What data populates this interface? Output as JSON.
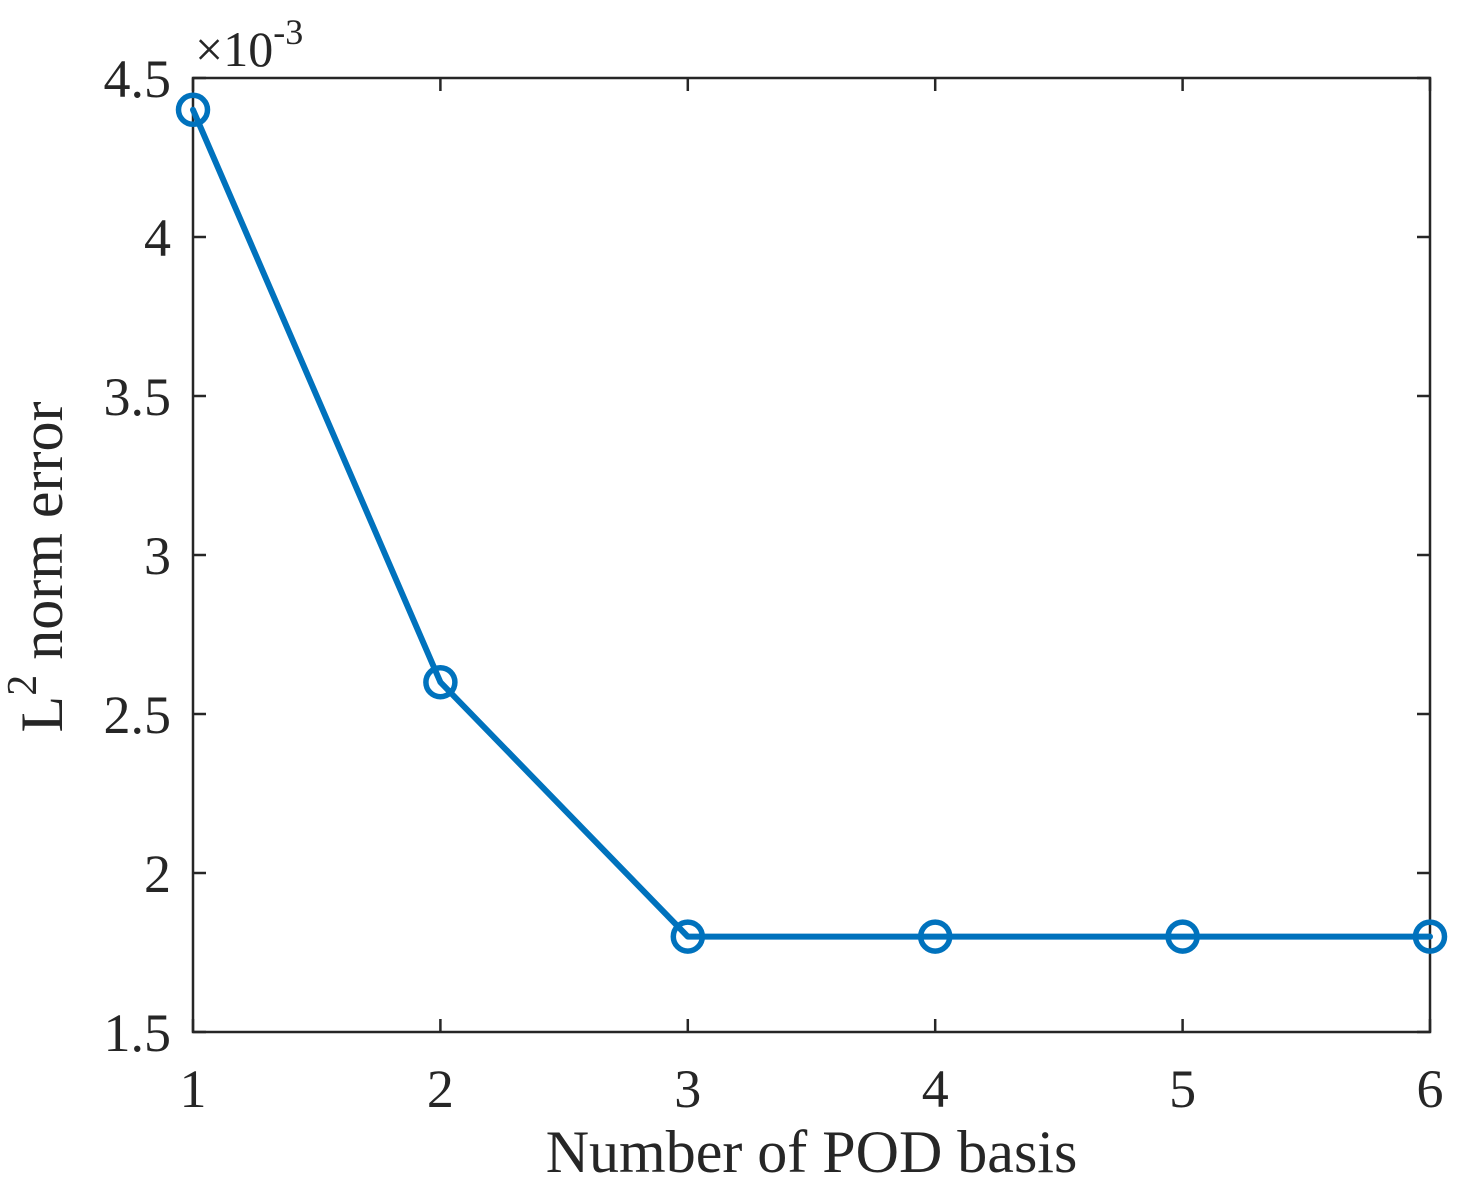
{
  "chart_data": {
    "type": "line",
    "x": [
      1,
      2,
      3,
      4,
      5,
      6
    ],
    "series": [
      {
        "name": "L2 norm error",
        "values": [
          0.0044,
          0.0026,
          0.0018,
          0.0018,
          0.0018,
          0.0018
        ]
      }
    ],
    "xlabel": "Number of POD basis",
    "ylabel_parts": {
      "pre": "L",
      "sup": "2",
      "post": " norm error"
    },
    "exponent": {
      "prefix": "×10",
      "sup": "-3"
    },
    "xlim": [
      1,
      6
    ],
    "ylim": [
      0.0015,
      0.0045
    ],
    "x_ticks": [
      1,
      2,
      3,
      4,
      5,
      6
    ],
    "x_tick_labels": [
      "1",
      "2",
      "3",
      "4",
      "5",
      "6"
    ],
    "y_ticks": [
      0.0015,
      0.002,
      0.0025,
      0.003,
      0.0035,
      0.004,
      0.0045
    ],
    "y_tick_labels": [
      "1.5",
      "2",
      "2.5",
      "3",
      "3.5",
      "4",
      "4.5"
    ],
    "grid": false,
    "legend_position": "none",
    "marker": "circle",
    "colors": {
      "line": "#0072BD",
      "axis": "#262626",
      "text": "#262626",
      "background": "#ffffff"
    }
  }
}
